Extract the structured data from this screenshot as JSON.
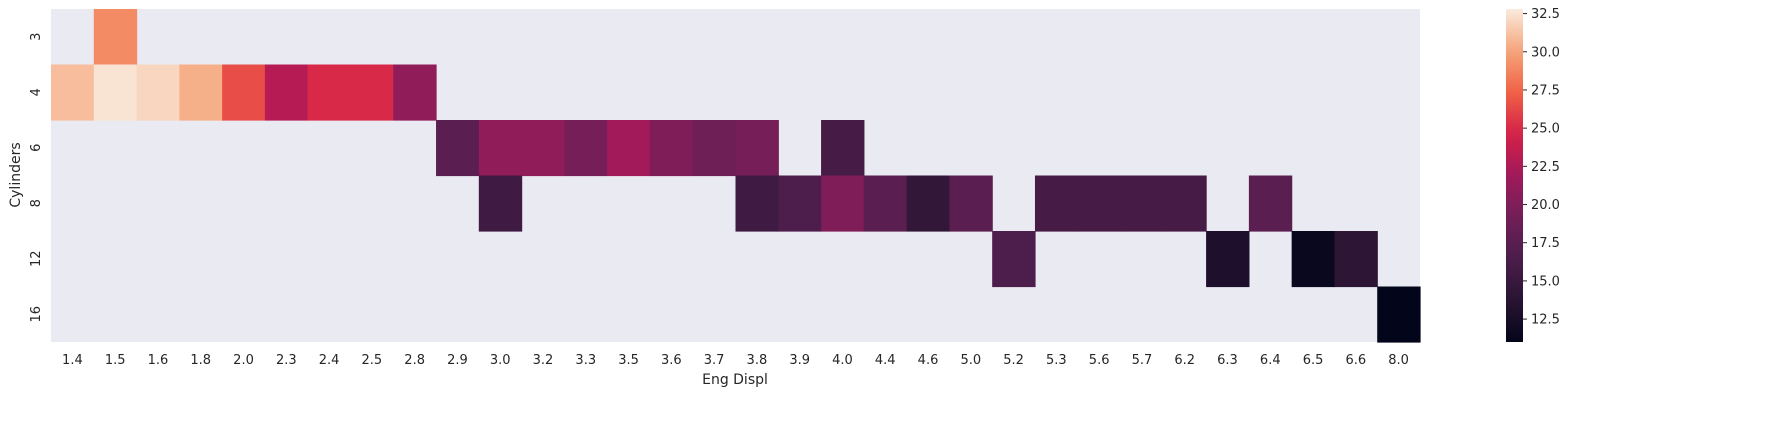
{
  "chart_data": {
    "type": "heatmap",
    "title": "",
    "xlabel": "Eng Displ",
    "ylabel": "Cylinders",
    "x_categories": [
      "1.4",
      "1.5",
      "1.6",
      "1.8",
      "2.0",
      "2.3",
      "2.4",
      "2.5",
      "2.8",
      "2.9",
      "3.0",
      "3.2",
      "3.3",
      "3.5",
      "3.6",
      "3.7",
      "3.8",
      "3.9",
      "4.0",
      "4.4",
      "4.6",
      "5.0",
      "5.2",
      "5.3",
      "5.6",
      "5.7",
      "6.2",
      "6.3",
      "6.4",
      "6.5",
      "6.6",
      "8.0"
    ],
    "y_categories": [
      "3",
      "4",
      "6",
      "8",
      "12",
      "16"
    ],
    "cells": [
      {
        "x": "1.5",
        "y": "3",
        "value": 29.0
      },
      {
        "x": "1.4",
        "y": "4",
        "value": 31.0
      },
      {
        "x": "1.5",
        "y": "4",
        "value": 32.5
      },
      {
        "x": "1.6",
        "y": "4",
        "value": 32.0
      },
      {
        "x": "1.8",
        "y": "4",
        "value": 30.5
      },
      {
        "x": "2.0",
        "y": "4",
        "value": 26.5
      },
      {
        "x": "2.3",
        "y": "4",
        "value": 23.0
      },
      {
        "x": "2.4",
        "y": "4",
        "value": 25.0
      },
      {
        "x": "2.5",
        "y": "4",
        "value": 25.0
      },
      {
        "x": "2.8",
        "y": "4",
        "value": 21.0
      },
      {
        "x": "2.9",
        "y": "6",
        "value": 17.5
      },
      {
        "x": "3.0",
        "y": "6",
        "value": 21.0
      },
      {
        "x": "3.2",
        "y": "6",
        "value": 21.0
      },
      {
        "x": "3.3",
        "y": "6",
        "value": 19.5
      },
      {
        "x": "3.5",
        "y": "6",
        "value": 22.0
      },
      {
        "x": "3.6",
        "y": "6",
        "value": 20.0
      },
      {
        "x": "3.7",
        "y": "6",
        "value": 19.0
      },
      {
        "x": "3.8",
        "y": "6",
        "value": 19.5
      },
      {
        "x": "4.0",
        "y": "6",
        "value": 16.0
      },
      {
        "x": "3.0",
        "y": "8",
        "value": 15.5
      },
      {
        "x": "3.8",
        "y": "8",
        "value": 15.5
      },
      {
        "x": "3.9",
        "y": "8",
        "value": 16.5
      },
      {
        "x": "4.0",
        "y": "8",
        "value": 20.0
      },
      {
        "x": "4.4",
        "y": "8",
        "value": 17.5
      },
      {
        "x": "4.6",
        "y": "8",
        "value": 14.5
      },
      {
        "x": "5.0",
        "y": "8",
        "value": 17.5
      },
      {
        "x": "5.3",
        "y": "8",
        "value": 16.0
      },
      {
        "x": "5.6",
        "y": "8",
        "value": 16.0
      },
      {
        "x": "5.7",
        "y": "8",
        "value": 16.0
      },
      {
        "x": "6.2",
        "y": "8",
        "value": 16.0
      },
      {
        "x": "6.4",
        "y": "8",
        "value": 17.5
      },
      {
        "x": "5.2",
        "y": "12",
        "value": 16.5
      },
      {
        "x": "6.3",
        "y": "12",
        "value": 13.0
      },
      {
        "x": "6.5",
        "y": "12",
        "value": 11.5
      },
      {
        "x": "6.6",
        "y": "12",
        "value": 14.0
      },
      {
        "x": "8.0",
        "y": "16",
        "value": 11.0
      }
    ],
    "colorbar": {
      "min": 11.0,
      "max": 32.8,
      "ticks": [
        "12.5",
        "15.0",
        "17.5",
        "20.0",
        "22.5",
        "25.0",
        "27.5",
        "30.0",
        "32.5"
      ],
      "colormap": "rocket"
    },
    "missing_color": "#eaeaf2",
    "grid": false
  }
}
